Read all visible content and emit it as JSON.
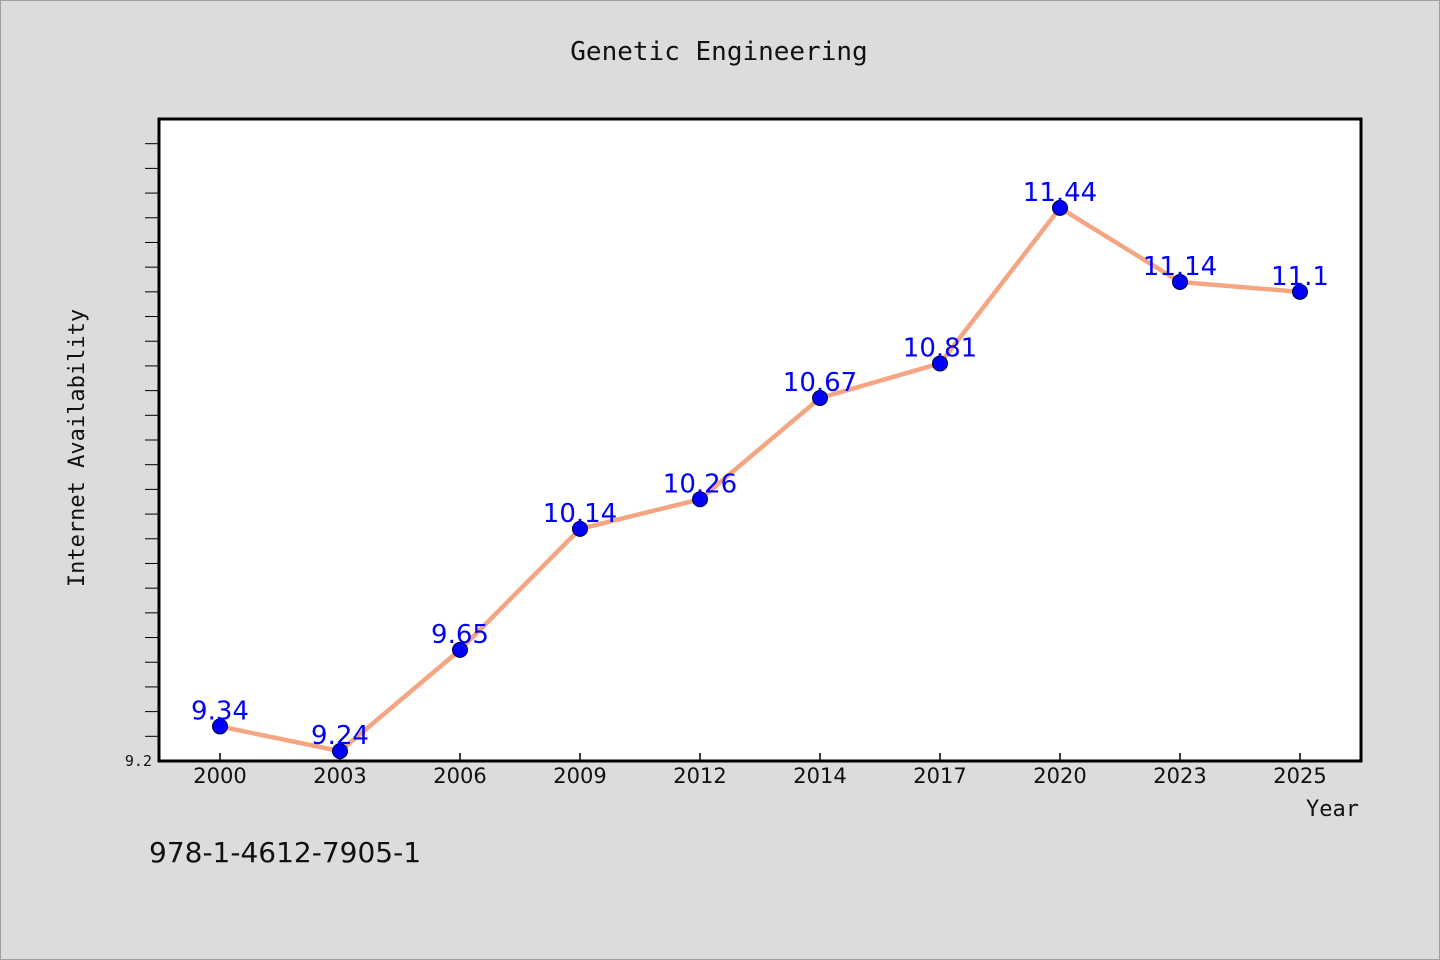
{
  "footer_text": "978-1-4612-7905-1",
  "colors": {
    "line": "#f4a582",
    "marker": "#0000ff",
    "label": "#0000ff",
    "background": "#dcdcdc",
    "plot_background": "#ffffff"
  },
  "chart_data": {
    "type": "line",
    "title": "Genetic Engineering",
    "xlabel": "Year",
    "ylabel": "Internet Availability",
    "categories": [
      "2000",
      "2003",
      "2006",
      "2009",
      "2012",
      "2014",
      "2017",
      "2020",
      "2023",
      "2025"
    ],
    "series": [
      {
        "values": [
          9.34,
          9.24,
          9.65,
          10.14,
          10.26,
          10.67,
          10.81,
          11.44,
          11.14,
          11.1
        ]
      }
    ],
    "data_labels": [
      "9.34",
      "9.24",
      "9.65",
      "10.14",
      "10.26",
      "10.67",
      "10.81",
      "11.44",
      "11.14",
      "11.1"
    ],
    "y_tick_labels": [
      "9.2"
    ],
    "ylim": [
      9.2,
      11.8
    ],
    "grid": false,
    "legend": "none"
  }
}
